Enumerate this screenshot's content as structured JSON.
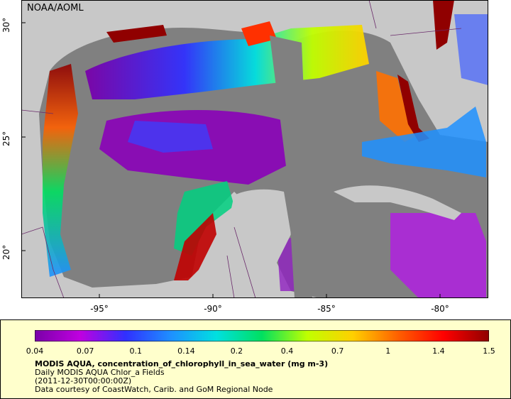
{
  "credit": "NOAA/AOML",
  "map": {
    "x_ticks": [
      {
        "label": "-95°",
        "lon": -95
      },
      {
        "label": "-90°",
        "lon": -90
      },
      {
        "label": "-85°",
        "lon": -85
      },
      {
        "label": "-80°",
        "lon": -80
      }
    ],
    "y_ticks": [
      {
        "label": "30°",
        "lat": 30
      },
      {
        "label": "25°",
        "lat": 25
      },
      {
        "label": "20°",
        "lat": 20
      }
    ],
    "extent": {
      "lon_min": -98.4,
      "lon_max": -77.9,
      "lat_min": 17.9,
      "lat_max": 31.0
    },
    "colors": {
      "ocean_nodata": "#808080",
      "land": "#c8c8c8",
      "border": "#6a2a6a"
    }
  },
  "colorbar": {
    "tick_labels": [
      "0.04",
      "0.07",
      "0.1",
      "0.14",
      "0.2",
      "0.4",
      "0.7",
      "1",
      "1.4",
      "1.5"
    ],
    "colors": [
      "#7a00a8",
      "#c000e0",
      "#3030ff",
      "#1e90ff",
      "#00e0e0",
      "#00e060",
      "#c0ff00",
      "#ffd000",
      "#ff6000",
      "#ff0000",
      "#900000"
    ]
  },
  "legend": {
    "title": "MODIS AQUA, concentration_of_chlorophyll_in_sea_water (mg m-3)",
    "line2": "Daily MODIS AQUA Chlor_a Fields",
    "line3": "(2011-12-30T00:00:00Z)",
    "line4": "Data courtesy of CoastWatch, Carib. and GoM Regional Node"
  }
}
